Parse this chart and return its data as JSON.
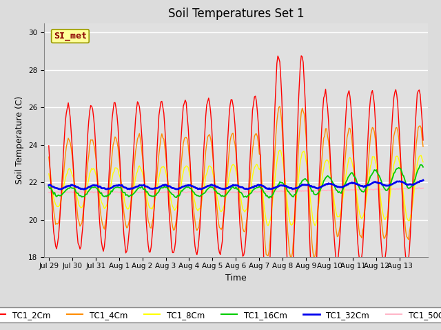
{
  "title": "Soil Temperatures Set 1",
  "xlabel": "Time",
  "ylabel": "Soil Temperature (C)",
  "ylim": [
    18,
    30.5
  ],
  "x_tick_labels": [
    "Jul 29",
    "Jul 30",
    "Jul 31",
    "Aug 1",
    "Aug 2",
    "Aug 3",
    "Aug 4",
    "Aug 5",
    "Aug 6",
    "Aug 7",
    "Aug 8",
    "Aug 9",
    "Aug 10",
    "Aug 11",
    "Aug 12",
    "Aug 13"
  ],
  "annotation_text": "SI_met",
  "annotation_color": "#8B0000",
  "annotation_bg": "#FFFF99",
  "annotation_border": "#999900",
  "series_colors": {
    "TC1_2Cm": "#FF0000",
    "TC1_4Cm": "#FF8C00",
    "TC1_8Cm": "#FFFF00",
    "TC1_16Cm": "#00CC00",
    "TC1_32Cm": "#0000EE",
    "TC1_50Cm": "#FFB6C8"
  },
  "series_linewidths": {
    "TC1_2Cm": 1.0,
    "TC1_4Cm": 1.0,
    "TC1_8Cm": 1.0,
    "TC1_16Cm": 1.3,
    "TC1_32Cm": 2.0,
    "TC1_50Cm": 1.3
  },
  "background_color": "#DCDCDC",
  "plot_bg_color": "#E0E0E0",
  "grid_color": "#FFFFFF",
  "title_fontsize": 12,
  "axis_label_fontsize": 9,
  "tick_fontsize": 7.5,
  "legend_fontsize": 8.5
}
